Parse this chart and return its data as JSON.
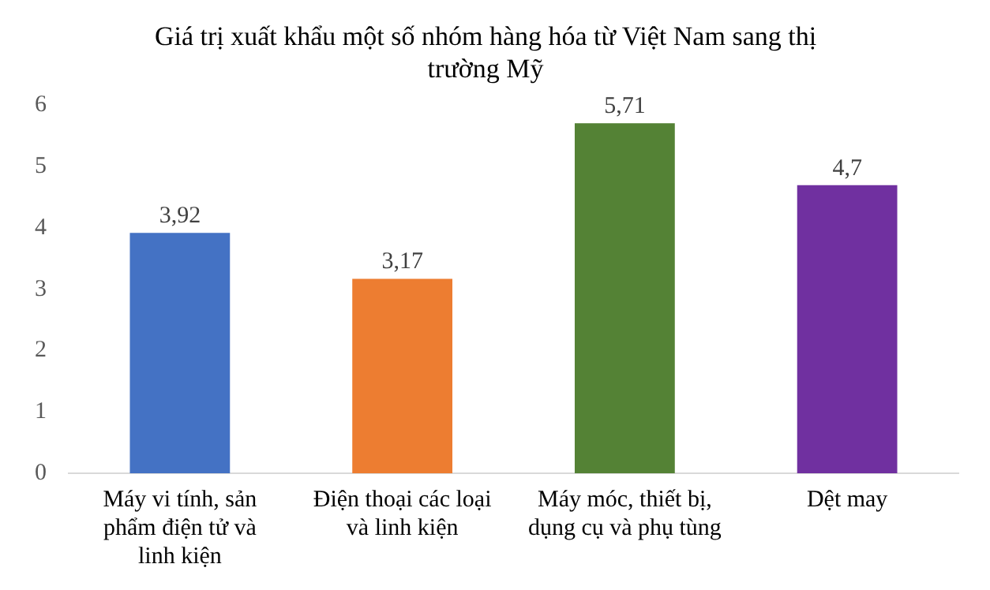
{
  "chart_data": {
    "type": "bar",
    "title": "Giá trị xuất khẩu một số nhóm hàng hóa từ Việt Nam sang thị trường Mỹ",
    "categories": [
      "Máy vi tính, sản phẩm điện tử và linh kiện",
      "Điện thoại các loại và linh kiện",
      "Máy móc, thiết bị, dụng cụ và phụ tùng",
      "Dệt may"
    ],
    "values": [
      3.92,
      3.17,
      5.71,
      4.7
    ],
    "colors": [
      "#4472c4",
      "#ed7d31",
      "#548235",
      "#7030a0"
    ],
    "value_labels": [
      "3,92",
      "3,17",
      "5,71",
      "4,7"
    ],
    "ylim": [
      0,
      6
    ],
    "yticks": [
      0,
      1,
      2,
      3,
      4,
      5,
      6
    ],
    "grid": false,
    "legend": false
  }
}
